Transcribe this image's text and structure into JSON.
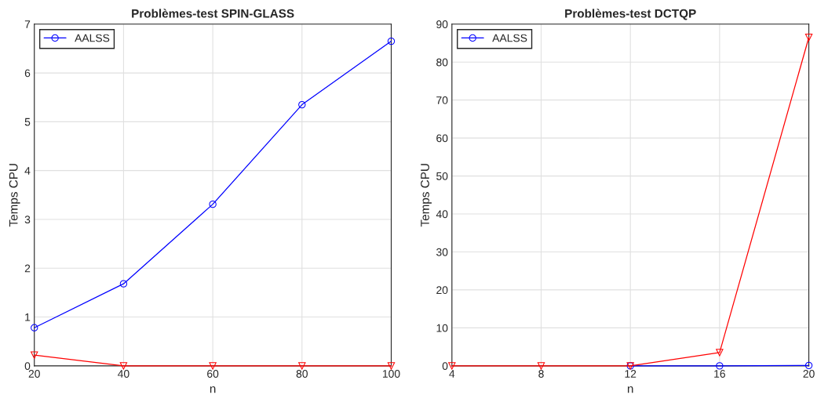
{
  "chart_data": [
    {
      "type": "line",
      "title": "Problèmes-test SPIN-GLASS",
      "xlabel": "n",
      "ylabel": "Temps CPU",
      "x": [
        20,
        40,
        60,
        80,
        100
      ],
      "series": [
        {
          "name": "AALSS",
          "color": "#0000ff",
          "marker": "circle",
          "values": [
            0.78,
            1.68,
            3.31,
            5.35,
            6.65
          ]
        },
        {
          "color": "#ff0000",
          "marker": "triangle",
          "values": [
            0.22,
            0.0,
            0.0,
            0.0,
            0.0
          ]
        }
      ],
      "xlim": [
        20,
        100
      ],
      "xticks": [
        20,
        40,
        60,
        80,
        100
      ],
      "ylim": [
        0,
        7
      ],
      "yticks": [
        0,
        1,
        2,
        3,
        4,
        5,
        6,
        7
      ],
      "grid": true,
      "legend": "top left"
    },
    {
      "type": "line",
      "title": "Problèmes-test DCTQP",
      "xlabel": "n",
      "ylabel": "Temps CPU",
      "x": [
        4,
        8,
        12,
        16,
        20
      ],
      "series": [
        {
          "name": "AALSS",
          "color": "#0000ff",
          "marker": "circle",
          "values": [
            null,
            null,
            0.0,
            0.0,
            0.1
          ]
        },
        {
          "color": "#ff0000",
          "marker": "triangle",
          "values": [
            0.0,
            0.0,
            0.0,
            3.5,
            86.5
          ]
        }
      ],
      "xlim": [
        4,
        20
      ],
      "xticks": [
        4,
        8,
        12,
        16,
        20
      ],
      "ylim": [
        0,
        90
      ],
      "yticks": [
        0,
        10,
        20,
        30,
        40,
        50,
        60,
        70,
        80,
        90
      ],
      "grid": true,
      "legend": "top left"
    }
  ]
}
